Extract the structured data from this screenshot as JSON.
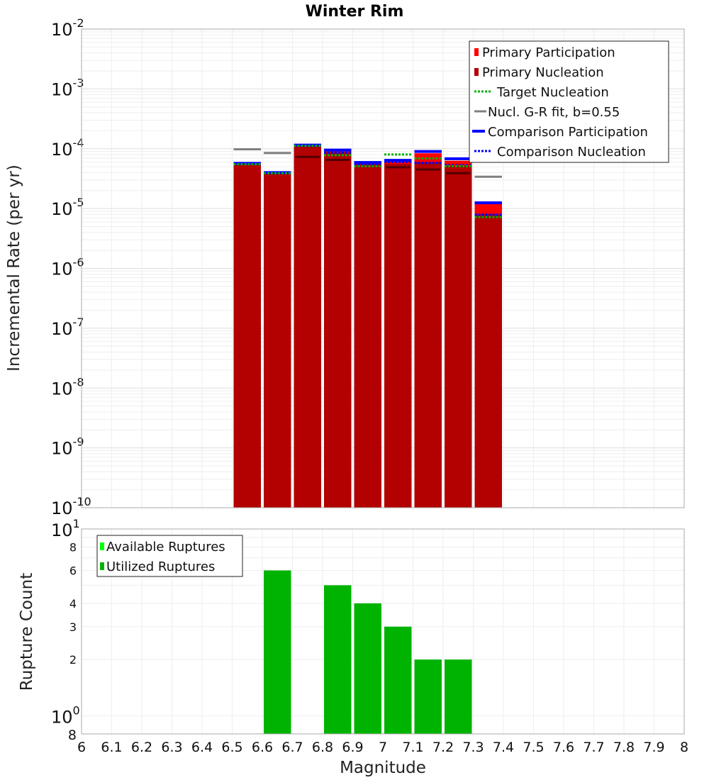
{
  "chart_data": [
    {
      "panel": "top",
      "type": "bar",
      "title": "Winter Rim",
      "xlabel": "",
      "ylabel": "Incremental Rate (per yr)",
      "yscale": "log",
      "xlim": [
        6,
        8
      ],
      "ylim": [
        1e-10,
        0.01
      ],
      "y_tick_labels": [
        {
          "value": 0.01,
          "base": "10",
          "exp": "-2"
        },
        {
          "value": 0.001,
          "base": "10",
          "exp": "-3"
        },
        {
          "value": 0.0001,
          "base": "10",
          "exp": "-4"
        },
        {
          "value": 1e-05,
          "base": "10",
          "exp": "-5"
        },
        {
          "value": 1e-06,
          "base": "10",
          "exp": "-6"
        },
        {
          "value": 1e-07,
          "base": "10",
          "exp": "-7"
        },
        {
          "value": 1e-08,
          "base": "10",
          "exp": "-8"
        },
        {
          "value": 1e-09,
          "base": "10",
          "exp": "-9"
        },
        {
          "value": 1e-10,
          "base": "10",
          "exp": "-10"
        }
      ],
      "bin_centers": [
        6.55,
        6.65,
        6.75,
        6.85,
        6.95,
        7.05,
        7.15,
        7.25,
        7.35
      ],
      "bin_width": 0.1,
      "series": [
        {
          "name": "Primary Participation",
          "color": "#ff0000",
          "style": "bar",
          "values": [
            5.4e-05,
            3.8e-05,
            0.00011,
            9e-05,
            5.6e-05,
            6.2e-05,
            8.4e-05,
            6.3e-05,
            1.2e-05
          ]
        },
        {
          "name": "Primary Nucleation",
          "color": "#b30000",
          "style": "bar",
          "values": [
            5.4e-05,
            3.8e-05,
            0.00011,
            8.8e-05,
            5.5e-05,
            5.6e-05,
            6e-05,
            5.2e-05,
            8e-06
          ]
        },
        {
          "name": "Target Nucleation",
          "color": "#00b300",
          "style": "dotted",
          "values": [
            5.5e-05,
            3.9e-05,
            0.000112,
            7.8e-05,
            5.1e-05,
            8e-05,
            6.9e-05,
            5.1e-05,
            7.2e-06
          ]
        },
        {
          "name": "Nucl. G-R fit, b=0.55",
          "color": "#808080",
          "style": "solid",
          "values": [
            9.8e-05,
            8.5e-05,
            null,
            null,
            null,
            null,
            null,
            null,
            3.4e-05
          ]
        },
        {
          "name": "Comparison Participation",
          "color": "#0000ff",
          "style": "solid",
          "values": [
            5.7e-05,
            4e-05,
            0.000115,
            9.5e-05,
            5.9e-05,
            6.4e-05,
            9e-05,
            6.8e-05,
            1.25e-05
          ]
        },
        {
          "name": "Comparison Nucleation",
          "color": "#0000ff",
          "style": "dotted",
          "values": [
            5.6e-05,
            3.9e-05,
            0.000112,
            8.6e-05,
            5.5e-05,
            6e-05,
            5.8e-05,
            5.3e-05,
            7.9e-06
          ]
        }
      ],
      "dark_markers": {
        "color": "#000000",
        "values": [
          null,
          null,
          7.3e-05,
          6.5e-05,
          null,
          4.9e-05,
          4.5e-05,
          3.9e-05,
          null
        ]
      },
      "legend": "top-right",
      "grid": true
    },
    {
      "panel": "bottom",
      "type": "bar",
      "title": "",
      "xlabel": "Magnitude",
      "ylabel": "Rupture Count",
      "yscale": "log",
      "xlim": [
        6,
        8
      ],
      "ylim": [
        0.8,
        10
      ],
      "x_tick_labels": [
        "6",
        "6.1",
        "6.2",
        "6.3",
        "6.4",
        "6.5",
        "6.6",
        "6.7",
        "6.8",
        "6.9",
        "7",
        "7.1",
        "7.2",
        "7.3",
        "7.4",
        "7.5",
        "7.6",
        "7.7",
        "7.8",
        "7.9",
        "8"
      ],
      "y_tick_labels": [
        {
          "value": 10,
          "base": "10",
          "exp": "1"
        },
        {
          "value": 8,
          "label": "8"
        },
        {
          "value": 6,
          "label": "6"
        },
        {
          "value": 4,
          "label": "4"
        },
        {
          "value": 3,
          "label": "3"
        },
        {
          "value": 2,
          "label": "2"
        },
        {
          "value": 1,
          "base": "10",
          "exp": "0"
        },
        {
          "value": 0.8,
          "label": "8"
        }
      ],
      "bin_centers": [
        6.65,
        6.85,
        6.95,
        7.05,
        7.15,
        7.25
      ],
      "bin_width": 0.1,
      "series": [
        {
          "name": "Available Ruptures",
          "color": "#00ff00",
          "values": [
            6,
            5,
            4,
            3,
            2,
            2
          ]
        },
        {
          "name": "Utilized Ruptures",
          "color": "#00b300",
          "values": [
            6,
            5,
            4,
            3,
            2,
            2
          ]
        }
      ],
      "legend": "top-left",
      "grid": true
    }
  ]
}
